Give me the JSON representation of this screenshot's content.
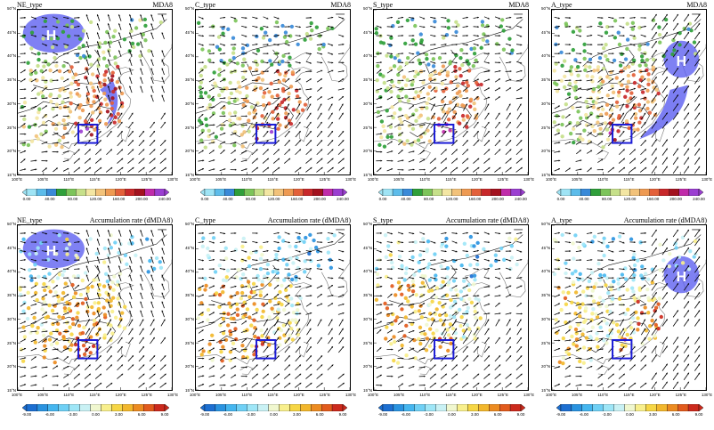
{
  "panels": [
    {
      "type_label": "NE_type",
      "metric_label": "MDA8",
      "h_label": "H",
      "row": "mda8",
      "high": "nw",
      "arrow": true
    },
    {
      "type_label": "C_type",
      "metric_label": "MDA8",
      "h_label": "",
      "row": "mda8",
      "high": "none",
      "arrow": false
    },
    {
      "type_label": "S_type",
      "metric_label": "MDA8",
      "h_label": "",
      "row": "mda8",
      "high": "none",
      "arrow": false
    },
    {
      "type_label": "A_type",
      "metric_label": "MDA8",
      "h_label": "H",
      "row": "mda8",
      "high": "ne",
      "arrow": true
    },
    {
      "type_label": "NE_type",
      "metric_label": "Accumulation rate (dMDA8)",
      "h_label": "H",
      "row": "dmda8",
      "high": "nw",
      "arrow": false
    },
    {
      "type_label": "C_type",
      "metric_label": "Accumulation rate (dMDA8)",
      "h_label": "",
      "row": "dmda8",
      "high": "none",
      "arrow": false
    },
    {
      "type_label": "S_type",
      "metric_label": "Accumulation rate (dMDA8)",
      "h_label": "",
      "row": "dmda8",
      "high": "none",
      "arrow": false
    },
    {
      "type_label": "A_type",
      "metric_label": "Accumulation rate (dMDA8)",
      "h_label": "H",
      "row": "dmda8",
      "high": "ne",
      "arrow": false
    }
  ],
  "lat_labels": [
    "50°N",
    "45°N",
    "40°N",
    "35°N",
    "30°N",
    "25°N",
    "20°N",
    "15°N"
  ],
  "lon_labels": [
    "100°E",
    "105°E",
    "110°E",
    "115°E",
    "120°E",
    "125°E",
    "130°E"
  ],
  "colorbars": {
    "mda8": {
      "labels": [
        "0.00",
        "40.00",
        "80.00",
        "120.00",
        "160.00",
        "200.00",
        "240.00"
      ],
      "colors": [
        "#9fe4f5",
        "#5dbcea",
        "#3a8ad8",
        "#2f9f3a",
        "#7cc45a",
        "#c6e08a",
        "#f3e6a3",
        "#f2c27a",
        "#ee9a52",
        "#e3603a",
        "#c8282a",
        "#a3121f",
        "#c02caa",
        "#9b3fd1"
      ]
    },
    "dmda8": {
      "labels": [
        "-9.00",
        "-6.00",
        "-3.00",
        "0.00",
        "3.00",
        "6.00",
        "9.00"
      ],
      "colors": [
        "#1d6fd1",
        "#2a93e0",
        "#45b6ef",
        "#6fd0f5",
        "#9ee6f7",
        "#c9f1f4",
        "#f0f7cf",
        "#f8ef8c",
        "#f6d645",
        "#f2b72d",
        "#ec8b21",
        "#e25b1d",
        "#cc2a1d"
      ]
    }
  },
  "colors": {
    "high_fill": "#5b5ef0",
    "region_box": "#1a1ad6",
    "coast": "#777777",
    "border": "#111111"
  }
}
